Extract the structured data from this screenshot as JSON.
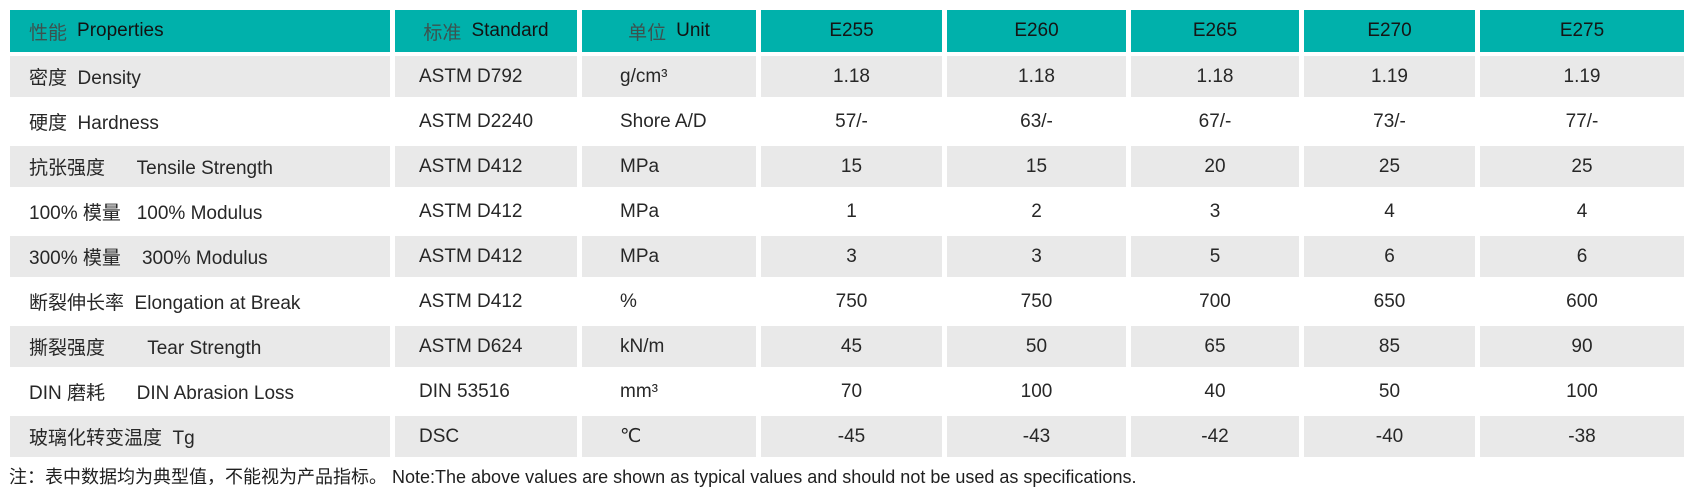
{
  "colors": {
    "header_bg": "#00b1ab",
    "stripe_bg": "#e9e9e9",
    "row_bg": "#ffffff",
    "header_cn_text": "#3b5350",
    "body_text": "#272727"
  },
  "table": {
    "header": {
      "property": {
        "cn": "性能",
        "en": "Properties"
      },
      "standard": {
        "cn": "标准",
        "en": "Standard"
      },
      "unit": {
        "cn": "单位",
        "en": "Unit"
      },
      "grades": [
        "E255",
        "E260",
        "E265",
        "E270",
        "E275"
      ]
    },
    "rows": [
      {
        "property": "密度  Density",
        "standard": "ASTM D792",
        "unit": "g/cm³",
        "values": [
          "1.18",
          "1.18",
          "1.18",
          "1.19",
          "1.19"
        ]
      },
      {
        "property": "硬度  Hardness",
        "standard": "ASTM D2240",
        "unit": "Shore A/D",
        "values": [
          "57/-",
          "63/-",
          "67/-",
          "73/-",
          "77/-"
        ]
      },
      {
        "property": "抗张强度      Tensile Strength",
        "standard": "ASTM D412",
        "unit": "MPa",
        "values": [
          "15",
          "15",
          "20",
          "25",
          "25"
        ]
      },
      {
        "property": "100% 模量   100% Modulus",
        "standard": "ASTM D412",
        "unit": "MPa",
        "values": [
          "1",
          "2",
          "3",
          "4",
          "4"
        ]
      },
      {
        "property": "300% 模量    300% Modulus",
        "standard": "ASTM D412",
        "unit": "MPa",
        "values": [
          "3",
          "3",
          "5",
          "6",
          "6"
        ]
      },
      {
        "property": "断裂伸长率  Elongation at Break",
        "standard": "ASTM D412",
        "unit": "%",
        "values": [
          "750",
          "750",
          "700",
          "650",
          "600"
        ]
      },
      {
        "property": "撕裂强度        Tear Strength",
        "standard": "ASTM D624",
        "unit": "kN/m",
        "values": [
          "45",
          "50",
          "65",
          "85",
          "90"
        ]
      },
      {
        "property": "DIN 磨耗      DIN Abrasion Loss",
        "standard": "DIN 53516",
        "unit": "mm³",
        "values": [
          "70",
          "100",
          "40",
          "50",
          "100"
        ]
      },
      {
        "property": "玻璃化转变温度  Tg",
        "standard": "DSC",
        "unit": "℃",
        "values": [
          "-45",
          "-43",
          "-42",
          "-40",
          "-38"
        ]
      }
    ]
  },
  "footnote": "注：表中数据均为典型值，不能视为产品指标。 Note:The above values are shown as typical values and should not be used as specifications."
}
